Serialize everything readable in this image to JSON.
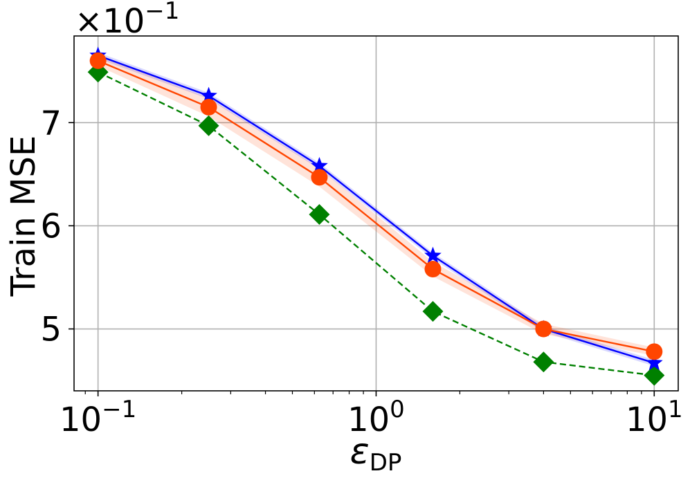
{
  "chart_data": {
    "type": "line",
    "title": "",
    "xlabel": "ε",
    "xlabel_subscript": "DP",
    "ylabel": "Train MSE",
    "y_multiplier_base": "×10",
    "y_multiplier_exp": "−1",
    "x_scale": "log",
    "xlim": [
      0.082,
      12.2
    ],
    "ylim": [
      4.4,
      7.84
    ],
    "grid": true,
    "legend": "none",
    "x_ticks": [
      {
        "value": 0.1,
        "base": "10",
        "exp": "−1"
      },
      {
        "value": 1,
        "base": "10",
        "exp": "0"
      },
      {
        "value": 10,
        "base": "10",
        "exp": "1"
      }
    ],
    "y_ticks": [
      {
        "value": 5,
        "label": "5"
      },
      {
        "value": 6,
        "label": "6"
      },
      {
        "value": 7,
        "label": "7"
      }
    ],
    "x": [
      0.1,
      0.25,
      0.625,
      1.6,
      4.0,
      10.0
    ],
    "series": [
      {
        "color": "#0000ff",
        "marker": "star",
        "linestyle": "solid",
        "values": [
          7.65,
          7.26,
          6.58,
          5.71,
          5.0,
          4.67
        ],
        "band": [
          0.03,
          0.03,
          0.03,
          0.03,
          0.03,
          0.03
        ]
      },
      {
        "color": "#ff4500",
        "marker": "circle",
        "linestyle": "solid",
        "values": [
          7.6,
          7.15,
          6.47,
          5.58,
          5.0,
          4.78
        ],
        "band": [
          0.05,
          0.09,
          0.09,
          0.07,
          0.05,
          0.04
        ]
      },
      {
        "color": "#008000",
        "marker": "diamond",
        "linestyle": "dashed",
        "values": [
          7.49,
          6.97,
          6.11,
          5.17,
          4.68,
          4.55
        ],
        "band": [
          0,
          0,
          0,
          0,
          0,
          0
        ]
      }
    ]
  }
}
